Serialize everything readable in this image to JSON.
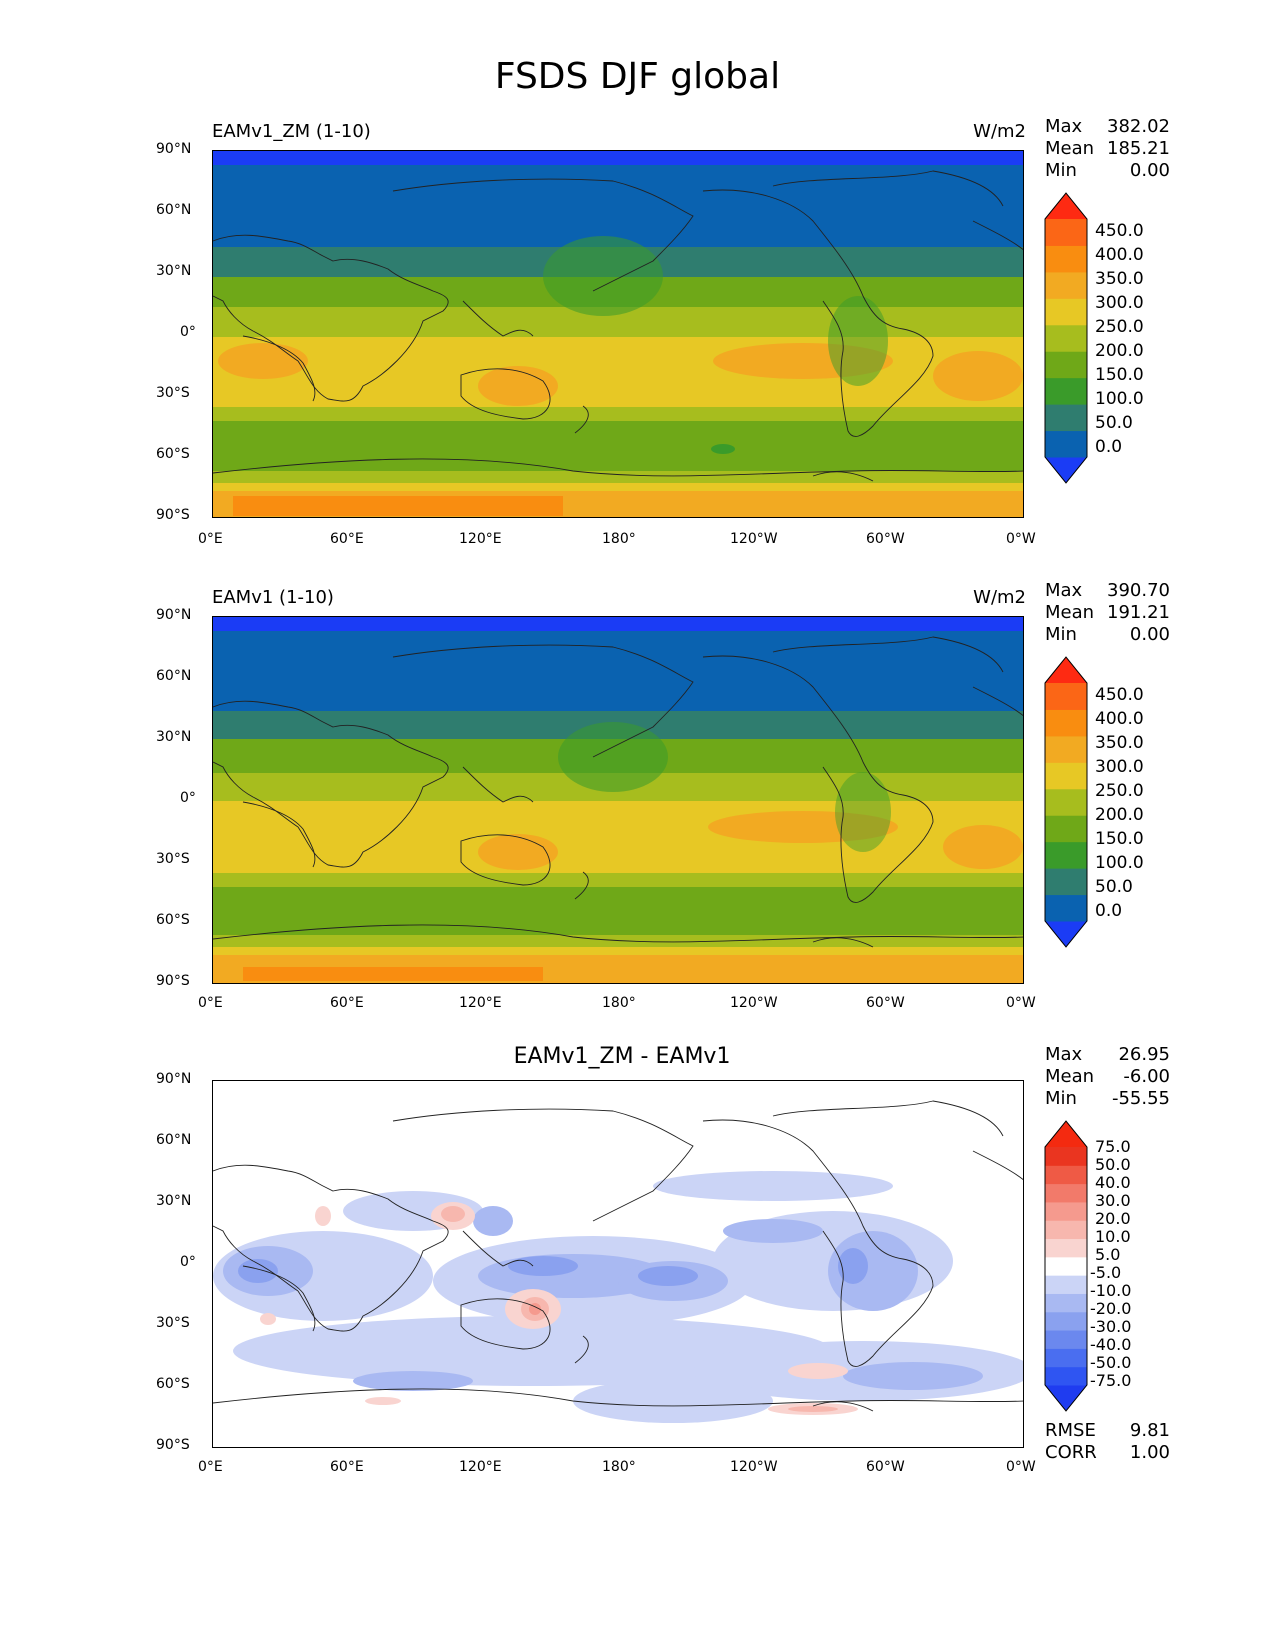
{
  "figure_title": "FSDS DJF global",
  "chart_data": [
    {
      "type": "heatmap",
      "title": "EAMv1_ZM (1-10)",
      "units": "W/m2",
      "stats": {
        "max_label": "Max",
        "max": "382.02",
        "mean_label": "Mean",
        "mean": "185.21",
        "min_label": "Min",
        "min": "0.00"
      },
      "colorbar_levels": [
        "0.0",
        "50.0",
        "100.0",
        "150.0",
        "200.0",
        "250.0",
        "300.0",
        "350.0",
        "400.0",
        "450.0"
      ],
      "colorbar_colors": [
        "#1b3cf5",
        "#0a62b0",
        "#2f7d6f",
        "#3a9b2a",
        "#6fa818",
        "#a7bd1e",
        "#e7c825",
        "#f2aa22",
        "#f98d10",
        "#fb6616",
        "#fe2a12"
      ],
      "x_ticks": [
        "0°E",
        "60°E",
        "120°E",
        "180°",
        "120°W",
        "60°W",
        "0°W"
      ],
      "y_ticks": [
        "90°N",
        "60°N",
        "30°N",
        "0°",
        "30°S",
        "60°S",
        "90°S"
      ],
      "xlim": [
        0,
        360
      ],
      "ylim": [
        -90,
        90
      ]
    },
    {
      "type": "heatmap",
      "title": "EAMv1 (1-10)",
      "units": "W/m2",
      "stats": {
        "max_label": "Max",
        "max": "390.70",
        "mean_label": "Mean",
        "mean": "191.21",
        "min_label": "Min",
        "min": "0.00"
      },
      "colorbar_levels": [
        "0.0",
        "50.0",
        "100.0",
        "150.0",
        "200.0",
        "250.0",
        "300.0",
        "350.0",
        "400.0",
        "450.0"
      ],
      "colorbar_colors": [
        "#1b3cf5",
        "#0a62b0",
        "#2f7d6f",
        "#3a9b2a",
        "#6fa818",
        "#a7bd1e",
        "#e7c825",
        "#f2aa22",
        "#f98d10",
        "#fb6616",
        "#fe2a12"
      ],
      "x_ticks": [
        "0°E",
        "60°E",
        "120°E",
        "180°",
        "120°W",
        "60°W",
        "0°W"
      ],
      "y_ticks": [
        "90°N",
        "60°N",
        "30°N",
        "0°",
        "30°S",
        "60°S",
        "90°S"
      ],
      "xlim": [
        0,
        360
      ],
      "ylim": [
        -90,
        90
      ]
    },
    {
      "type": "heatmap",
      "title": "EAMv1_ZM - EAMv1",
      "stats": {
        "max_label": "Max",
        "max": "26.95",
        "mean_label": "Mean",
        "mean": "-6.00",
        "min_label": "Min",
        "min": "-55.55"
      },
      "colorbar_levels": [
        "-75.0",
        "-50.0",
        "-40.0",
        "-30.0",
        "-20.0",
        "-10.0",
        "-5.0",
        "5.0",
        "10.0",
        "20.0",
        "30.0",
        "40.0",
        "50.0",
        "75.0"
      ],
      "colorbar_colors": [
        "#1f3cf0",
        "#2f55f2",
        "#4a6ef0",
        "#6b88ee",
        "#8aa1ef",
        "#a9b9f2",
        "#cbd4f6",
        "#ffffff",
        "#f9d4d0",
        "#f7b7ae",
        "#f59a8e",
        "#f27a6a",
        "#ef5a45",
        "#ea3520",
        "#f42a10"
      ],
      "x_ticks": [
        "0°E",
        "60°E",
        "120°E",
        "180°",
        "120°W",
        "60°W",
        "0°W"
      ],
      "y_ticks": [
        "90°N",
        "60°N",
        "30°N",
        "0°",
        "30°S",
        "60°S",
        "90°S"
      ],
      "xlim": [
        0,
        360
      ],
      "ylim": [
        -90,
        90
      ],
      "rmse_label": "RMSE",
      "rmse": "9.81",
      "corr_label": "CORR",
      "corr": "1.00"
    }
  ]
}
